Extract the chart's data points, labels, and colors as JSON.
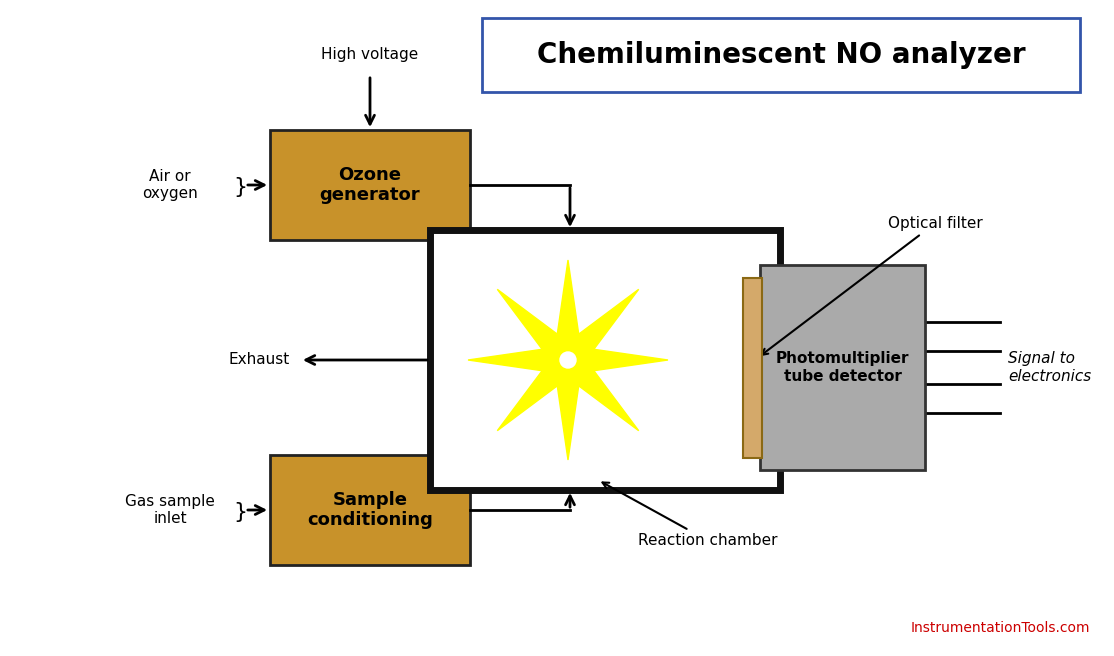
{
  "title": "Chemiluminescent NO analyzer",
  "bg_color": "#ffffff",
  "box_color": "#c8922a",
  "box_edge": "#222222",
  "pmt_color": "#aaaaaa",
  "pmt_edge": "#333333",
  "filter_color": "#d4a96a",
  "reaction_chamber_edge": "#111111",
  "reaction_chamber_fill": "#ffffff",
  "star_yellow": "#ffff00",
  "title_box_edge": "#3355aa",
  "website_color": "#cc0000",
  "website_text": "InstrumentationTools.com",
  "labels": {
    "high_voltage": "High voltage",
    "air_oxygen": "Air or\noxygen",
    "ozone_gen": "Ozone\ngenerator",
    "exhaust": "Exhaust",
    "optical_filter": "Optical filter",
    "pmt": "Photomultiplier\ntube detector",
    "signal": "Signal to\nelectronics",
    "reaction_chamber": "Reaction chamber",
    "gas_sample": "Gas sample\ninlet",
    "sample_cond": "Sample\nconditioning"
  }
}
